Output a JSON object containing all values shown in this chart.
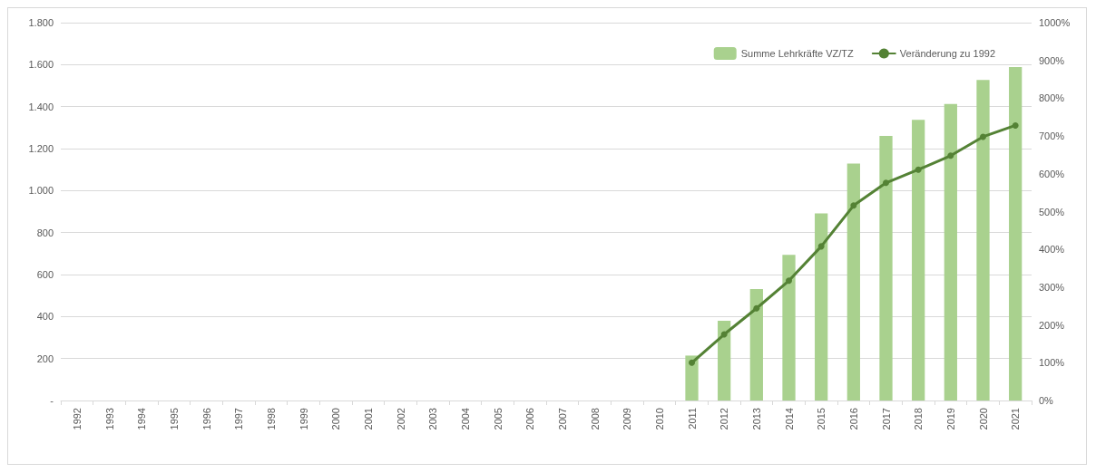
{
  "chart_data": {
    "type": "bar",
    "categories": [
      "1992",
      "1993",
      "1994",
      "1995",
      "1996",
      "1997",
      "1998",
      "1999",
      "2000",
      "2001",
      "2002",
      "2003",
      "2004",
      "2005",
      "2006",
      "2007",
      "2008",
      "2009",
      "2010",
      "2011",
      "2012",
      "2013",
      "2014",
      "2015",
      "2016",
      "2017",
      "2018",
      "2019",
      "2020",
      "2021"
    ],
    "series": [
      {
        "name": "Summe Lehrkräfte VZ/TZ",
        "color": "#a9d18e",
        "values": [
          null,
          null,
          null,
          null,
          null,
          null,
          null,
          null,
          null,
          null,
          null,
          null,
          null,
          null,
          null,
          null,
          null,
          null,
          null,
          214,
          380,
          531,
          694,
          891,
          1129,
          1260,
          1337,
          1413,
          1527,
          1589
        ]
      },
      {
        "name": "Veränderung zu 1992",
        "type": "line",
        "axis": "y2",
        "color": "#548235",
        "marker": "circle",
        "line_style": "solid",
        "values": [
          null,
          null,
          null,
          null,
          null,
          null,
          null,
          null,
          null,
          null,
          null,
          null,
          null,
          null,
          null,
          null,
          null,
          null,
          null,
          100,
          175,
          244,
          317,
          408,
          516,
          576,
          611,
          648,
          698,
          728
        ]
      }
    ],
    "ylim": [
      0,
      1800
    ],
    "yticks": [
      {
        "value": 0,
        "label": "-"
      },
      200,
      400,
      600,
      800,
      {
        "value": 1000,
        "label": "1.000"
      },
      {
        "value": 1200,
        "label": "1.200"
      },
      {
        "value": 1400,
        "label": "1.400"
      },
      {
        "value": 1600,
        "label": "1.600"
      },
      {
        "value": 1800,
        "label": "1.800"
      }
    ],
    "y2lim": [
      0,
      1000
    ],
    "y2ticks": [
      {
        "value": 0,
        "label": "0%"
      },
      {
        "value": 100,
        "label": "100%"
      },
      {
        "value": 200,
        "label": "200%"
      },
      {
        "value": 300,
        "label": "300%"
      },
      {
        "value": 400,
        "label": "400%"
      },
      {
        "value": 500,
        "label": "500%"
      },
      {
        "value": 600,
        "label": "600%"
      },
      {
        "value": 700,
        "label": "700%"
      },
      {
        "value": 800,
        "label": "800%"
      },
      {
        "value": 900,
        "label": "900%"
      },
      {
        "value": 1000,
        "label": "1000%"
      }
    ],
    "grid": "y",
    "legend": "top right"
  }
}
